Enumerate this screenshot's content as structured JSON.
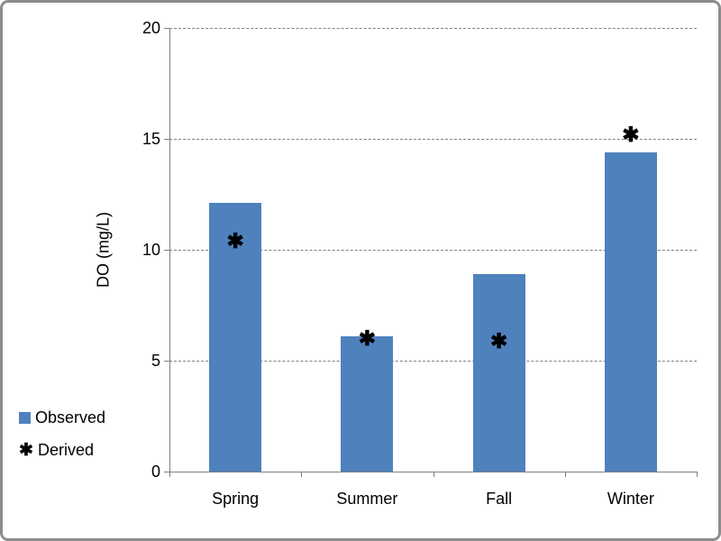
{
  "chart_data": {
    "type": "bar",
    "title": "",
    "xlabel": "",
    "ylabel": "DO (mg/L)",
    "categories": [
      "Spring",
      "Summer",
      "Fall",
      "Winter"
    ],
    "series": [
      {
        "name": "Observed",
        "type": "bar",
        "color": "#4F81BD",
        "values": [
          12.1,
          6.1,
          8.9,
          14.4
        ]
      },
      {
        "name": "Derived",
        "type": "scatter",
        "marker": "star-x",
        "color": "#000000",
        "values": [
          10.4,
          6.0,
          5.9,
          15.2
        ]
      }
    ],
    "ylim": [
      0,
      20
    ],
    "yticks": [
      0,
      5,
      10,
      15,
      20
    ],
    "grid": "horizontal-dashed",
    "legend_position": "bottom-left",
    "marker_glyph": "✱"
  },
  "colors": {
    "bar": "#4F81BD",
    "marker": "#000000",
    "axis": "#808080",
    "gridline": "#808080",
    "frame_border": "#8C8C8C",
    "background": "#FFFFFF",
    "text": "#000000"
  }
}
